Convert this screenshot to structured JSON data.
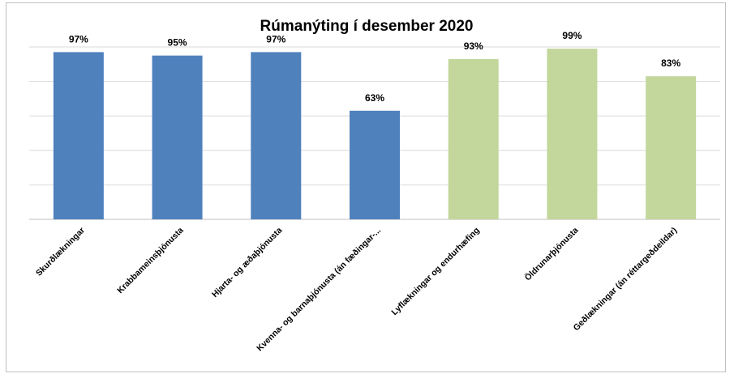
{
  "chart_data": {
    "type": "bar",
    "title": "Rúmanýting í desember 2020",
    "categories": [
      "Skurðlækningar",
      "Krabbameinsþjónusta",
      "Hjarta- og æðaþjónusta",
      "Kvenna- og barnaþjónusta (án fæðingar-...",
      "Lyflækningar og endurhæfing",
      "Öldrunarþjónusta",
      "Geðlækningar (án réttargeðdeildar)"
    ],
    "values": [
      97,
      95,
      97,
      63,
      93,
      99,
      83
    ],
    "data_labels": [
      "97%",
      "95%",
      "97%",
      "63%",
      "93%",
      "99%",
      "83%"
    ],
    "bar_colors": [
      "#4f81bd",
      "#4f81bd",
      "#4f81bd",
      "#4f81bd",
      "#c3d69b",
      "#c3d69b",
      "#c3d69b"
    ],
    "ylim": [
      0,
      100
    ],
    "yticks": [
      0,
      20,
      40,
      60,
      80,
      100
    ],
    "show_y_tick_labels": false,
    "grid": true,
    "xlabel": "",
    "ylabel": ""
  }
}
